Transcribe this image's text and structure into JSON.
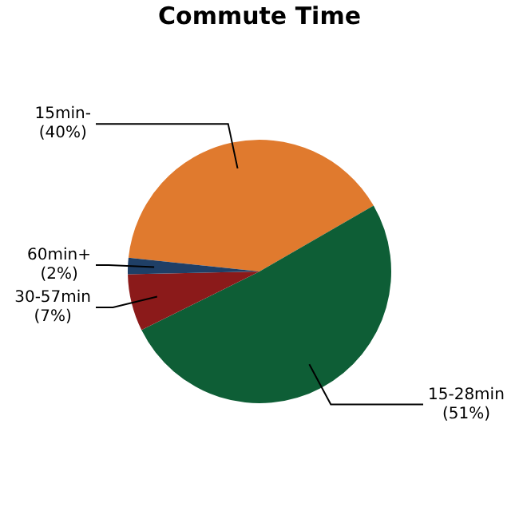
{
  "chart_data": {
    "type": "pie",
    "title": "Commute Time",
    "categories": [
      "15min-",
      "15-28min",
      "30-57min",
      "60min+"
    ],
    "values": [
      40,
      51,
      7,
      2
    ],
    "value_labels": [
      "(40%)",
      "(51%)",
      "(7%)",
      "(2%)"
    ],
    "colors": [
      "#e07a2e",
      "#0e5e36",
      "#8b1a1a",
      "#1f3f66"
    ],
    "legend": false
  }
}
